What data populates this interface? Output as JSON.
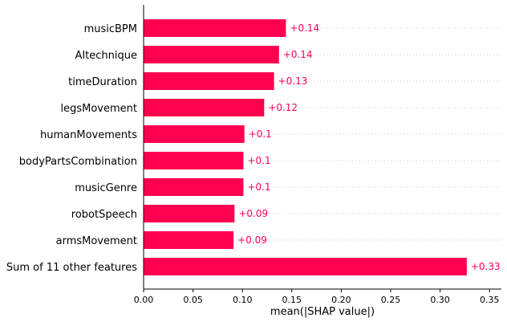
{
  "chart_data": {
    "type": "bar",
    "orientation": "horizontal",
    "categories": [
      "musicBPM",
      "AItechnique",
      "timeDuration",
      "legsMovement",
      "humanMovements",
      "bodyPartsCombination",
      "musicGenre",
      "robotSpeech",
      "armsMovement",
      "Sum of 11 other features"
    ],
    "values": [
      0.144,
      0.137,
      0.132,
      0.122,
      0.102,
      0.101,
      0.101,
      0.092,
      0.091,
      0.327
    ],
    "value_labels": [
      "+0.14",
      "+0.14",
      "+0.13",
      "+0.12",
      "+0.1",
      "+0.1",
      "+0.1",
      "+0.09",
      "+0.09",
      "+0.33"
    ],
    "title": "",
    "xlabel": "mean(|SHAP value|)",
    "ylabel": "",
    "xlim": [
      0,
      0.362
    ],
    "xticks": [
      "0.00",
      "0.05",
      "0.10",
      "0.15",
      "0.20",
      "0.25",
      "0.30",
      "0.35"
    ],
    "xtick_values": [
      0,
      0.05,
      0.1,
      0.15,
      0.2,
      0.25,
      0.3,
      0.35
    ],
    "grid": "dotted horizontal row guides",
    "legend": "none",
    "colors": {
      "bar": "#ff0051",
      "label": "#ff0051",
      "axis": "#000000",
      "grid": "#cccccc"
    }
  }
}
